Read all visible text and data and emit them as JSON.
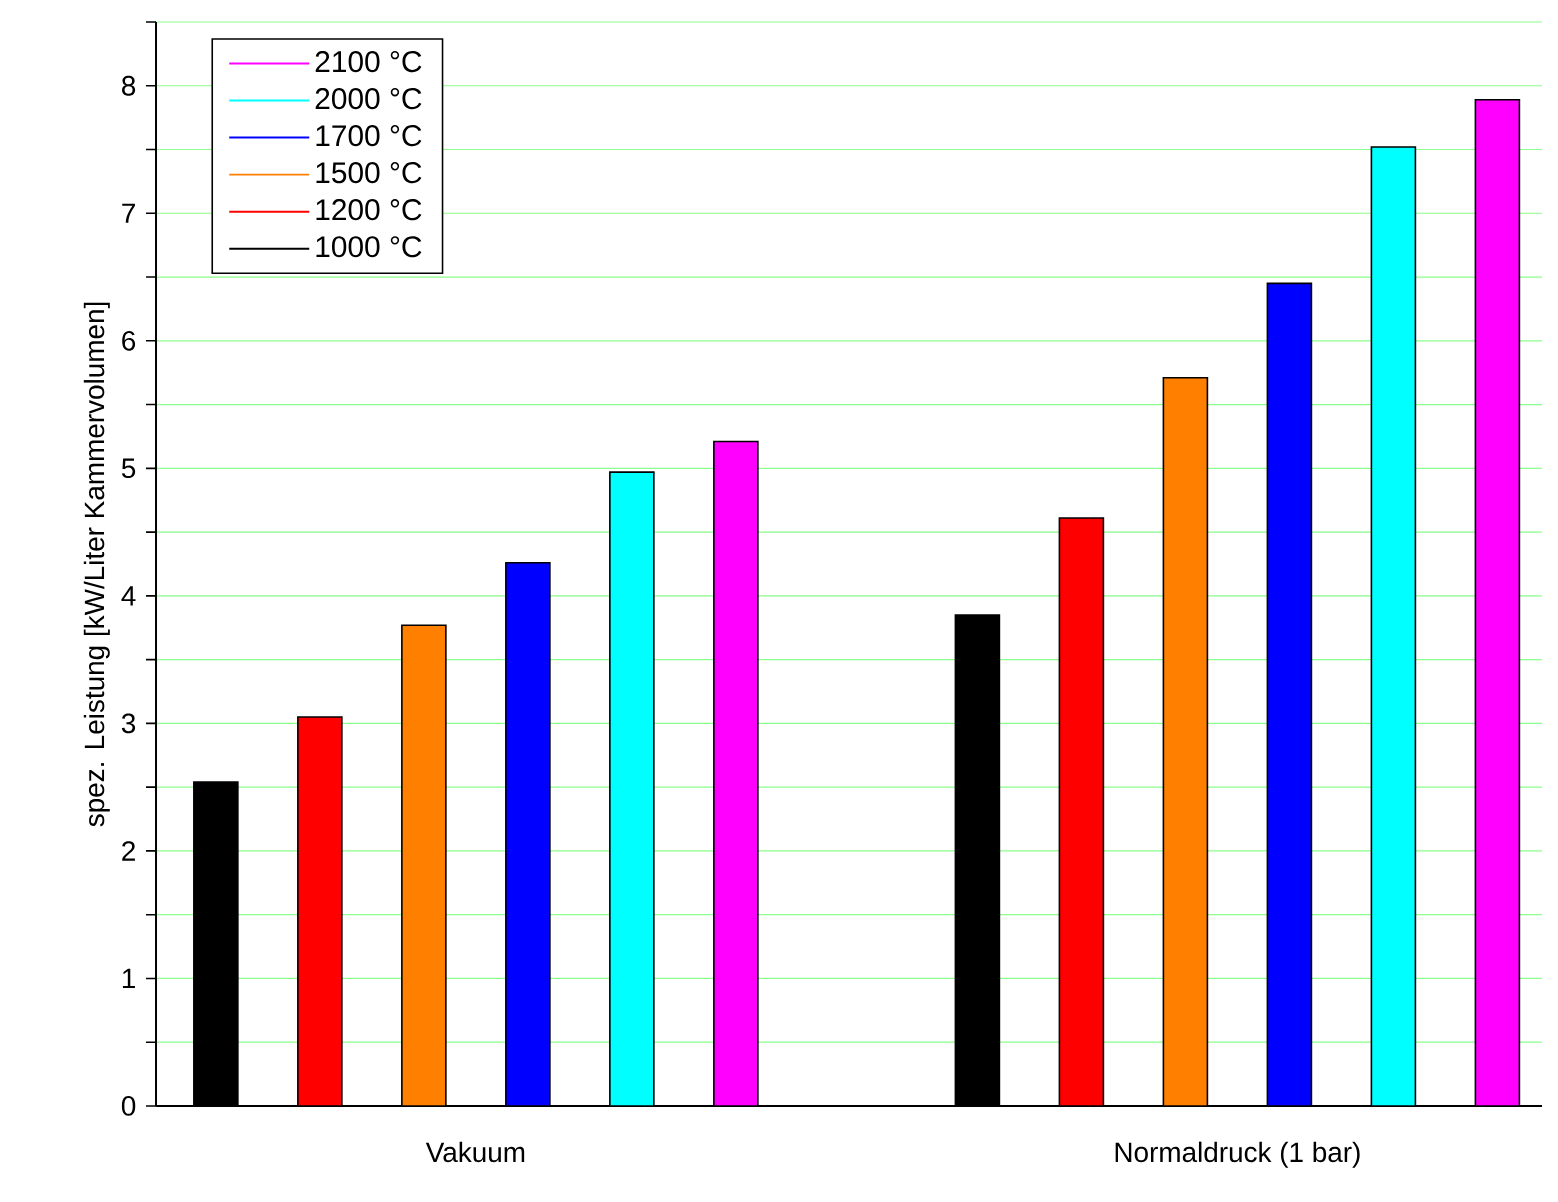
{
  "chart_data": {
    "type": "bar",
    "ylabel": "spez. Leistung [kW/Liter Kammervolumen]",
    "categories": [
      "Vakuum",
      "Normaldruck (1 bar)"
    ],
    "series": [
      {
        "name": "1000 °C",
        "color": "#000000",
        "values": [
          2.54,
          3.85
        ]
      },
      {
        "name": "1200 °C",
        "color": "#ff0000",
        "values": [
          3.05,
          4.61
        ]
      },
      {
        "name": "1500 °C",
        "color": "#ff8000",
        "values": [
          3.77,
          5.71
        ]
      },
      {
        "name": "1700 °C",
        "color": "#0000ff",
        "values": [
          4.26,
          6.45
        ]
      },
      {
        "name": "2000 °C",
        "color": "#00ffff",
        "values": [
          4.97,
          7.52
        ]
      },
      {
        "name": "2100 °C",
        "color": "#ff00ff",
        "values": [
          5.21,
          7.89
        ]
      }
    ],
    "ylim": [
      0,
      8.5
    ],
    "yticks": [
      0,
      {
        "value": 0.5,
        "label": null
      },
      1,
      {
        "value": 1.5,
        "label": null
      },
      2,
      {
        "value": 2.5,
        "label": null
      },
      3,
      {
        "value": 3.5,
        "label": null
      },
      4,
      {
        "value": 4.5,
        "label": null
      },
      5,
      {
        "value": 5.5,
        "label": null
      },
      6,
      {
        "value": 6.5,
        "label": null
      },
      7,
      {
        "value": 7.5,
        "label": null
      },
      8,
      {
        "value": 8.5,
        "label": null
      }
    ],
    "grid": "y",
    "legend": "top left"
  }
}
